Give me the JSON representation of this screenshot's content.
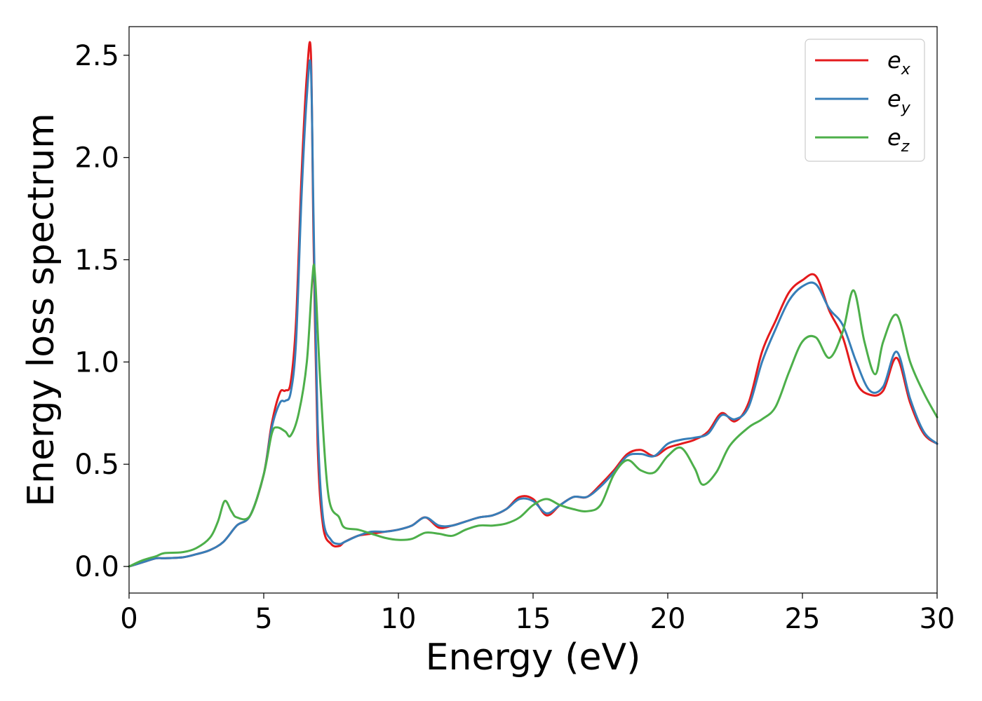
{
  "chart_data": {
    "type": "line",
    "title": "",
    "xlabel": "Energy (eV)",
    "ylabel": "Energy loss spectrum",
    "xlim": [
      0,
      30
    ],
    "ylim": [
      -0.13,
      2.64
    ],
    "xticks": [
      0,
      5,
      10,
      15,
      20,
      25,
      30
    ],
    "yticks": [
      0.0,
      0.5,
      1.0,
      1.5,
      2.0,
      2.5
    ],
    "xtick_labels": [
      "0",
      "5",
      "10",
      "15",
      "20",
      "25",
      "30"
    ],
    "ytick_labels": [
      "0.0",
      "0.5",
      "1.0",
      "1.5",
      "2.0",
      "2.5"
    ],
    "grid": false,
    "legend_position": "top-right",
    "series": [
      {
        "name": "e_x",
        "legend_base": "e",
        "legend_sub": "x",
        "color": "#e41a1c",
        "x": [
          0,
          0.5,
          1.0,
          1.3,
          2.0,
          2.5,
          3.0,
          3.5,
          4.0,
          4.5,
          5.0,
          5.3,
          5.6,
          5.8,
          6.0,
          6.2,
          6.4,
          6.6,
          6.75,
          6.85,
          7.0,
          7.2,
          7.5,
          7.8,
          8.0,
          8.5,
          9.0,
          9.5,
          10.0,
          10.5,
          11.0,
          11.5,
          12.0,
          12.5,
          13.0,
          13.5,
          14.0,
          14.5,
          15.0,
          15.5,
          16.0,
          16.5,
          17.0,
          17.5,
          18.0,
          18.5,
          19.0,
          19.5,
          20.0,
          20.5,
          21.0,
          21.5,
          22.0,
          22.5,
          23.0,
          23.5,
          24.0,
          24.5,
          25.0,
          25.5,
          26.0,
          26.5,
          27.0,
          27.5,
          28.0,
          28.5,
          29.0,
          29.5,
          30.0
        ],
        "values": [
          0.0,
          0.02,
          0.04,
          0.04,
          0.045,
          0.06,
          0.08,
          0.12,
          0.2,
          0.25,
          0.45,
          0.7,
          0.85,
          0.86,
          0.9,
          1.2,
          1.9,
          2.4,
          2.51,
          1.6,
          0.6,
          0.2,
          0.11,
          0.1,
          0.12,
          0.15,
          0.16,
          0.17,
          0.18,
          0.2,
          0.24,
          0.19,
          0.2,
          0.22,
          0.24,
          0.25,
          0.28,
          0.34,
          0.33,
          0.25,
          0.3,
          0.34,
          0.34,
          0.4,
          0.47,
          0.55,
          0.57,
          0.54,
          0.58,
          0.6,
          0.62,
          0.66,
          0.75,
          0.71,
          0.8,
          1.05,
          1.2,
          1.34,
          1.4,
          1.42,
          1.25,
          1.12,
          0.9,
          0.84,
          0.86,
          1.02,
          0.8,
          0.65,
          0.6
        ]
      },
      {
        "name": "e_y",
        "legend_base": "e",
        "legend_sub": "y",
        "color": "#377eb8",
        "x": [
          0,
          0.5,
          1.0,
          1.3,
          2.0,
          2.5,
          3.0,
          3.5,
          4.0,
          4.5,
          5.0,
          5.3,
          5.6,
          5.8,
          6.0,
          6.2,
          6.4,
          6.6,
          6.75,
          6.85,
          7.0,
          7.2,
          7.5,
          7.8,
          8.0,
          8.5,
          9.0,
          9.5,
          10.0,
          10.5,
          11.0,
          11.5,
          12.0,
          12.5,
          13.0,
          13.5,
          14.0,
          14.5,
          15.0,
          15.5,
          16.0,
          16.5,
          17.0,
          17.5,
          18.0,
          18.5,
          19.0,
          19.5,
          20.0,
          20.5,
          21.0,
          21.5,
          22.0,
          22.5,
          23.0,
          23.5,
          24.0,
          24.5,
          25.0,
          25.5,
          26.0,
          26.5,
          27.0,
          27.5,
          28.0,
          28.5,
          29.0,
          29.5,
          30.0
        ],
        "values": [
          0.0,
          0.02,
          0.04,
          0.04,
          0.045,
          0.06,
          0.08,
          0.12,
          0.2,
          0.25,
          0.45,
          0.68,
          0.8,
          0.81,
          0.85,
          1.1,
          1.8,
          2.3,
          2.44,
          1.7,
          0.7,
          0.24,
          0.13,
          0.11,
          0.12,
          0.15,
          0.17,
          0.17,
          0.18,
          0.2,
          0.24,
          0.2,
          0.2,
          0.22,
          0.24,
          0.25,
          0.28,
          0.33,
          0.32,
          0.26,
          0.3,
          0.34,
          0.34,
          0.39,
          0.46,
          0.54,
          0.55,
          0.54,
          0.6,
          0.62,
          0.63,
          0.65,
          0.74,
          0.72,
          0.78,
          1.0,
          1.16,
          1.3,
          1.37,
          1.38,
          1.26,
          1.18,
          1.0,
          0.86,
          0.88,
          1.05,
          0.82,
          0.66,
          0.6
        ]
      },
      {
        "name": "e_z",
        "legend_base": "e",
        "legend_sub": "z",
        "color": "#4daf4a",
        "x": [
          0,
          0.5,
          1.0,
          1.3,
          2.0,
          2.5,
          3.0,
          3.3,
          3.55,
          3.8,
          4.0,
          4.5,
          5.0,
          5.3,
          5.5,
          5.8,
          6.0,
          6.3,
          6.6,
          6.8,
          6.9,
          7.1,
          7.4,
          7.8,
          8.0,
          8.5,
          9.0,
          9.5,
          10.0,
          10.5,
          11.0,
          11.5,
          12.0,
          12.5,
          13.0,
          13.5,
          14.0,
          14.5,
          15.0,
          15.5,
          16.0,
          16.5,
          17.0,
          17.5,
          18.0,
          18.5,
          19.0,
          19.5,
          20.0,
          20.5,
          21.0,
          21.3,
          21.8,
          22.3,
          23.0,
          23.5,
          24.0,
          24.5,
          25.0,
          25.5,
          26.0,
          26.5,
          26.9,
          27.3,
          27.7,
          28.0,
          28.5,
          29.0,
          29.5,
          30.0
        ],
        "values": [
          0.0,
          0.03,
          0.05,
          0.065,
          0.07,
          0.09,
          0.14,
          0.22,
          0.32,
          0.27,
          0.24,
          0.25,
          0.45,
          0.65,
          0.68,
          0.66,
          0.64,
          0.75,
          1.0,
          1.4,
          1.43,
          0.9,
          0.35,
          0.24,
          0.19,
          0.18,
          0.16,
          0.14,
          0.13,
          0.135,
          0.165,
          0.16,
          0.15,
          0.18,
          0.2,
          0.2,
          0.21,
          0.24,
          0.3,
          0.33,
          0.3,
          0.28,
          0.27,
          0.3,
          0.45,
          0.52,
          0.47,
          0.46,
          0.54,
          0.58,
          0.48,
          0.4,
          0.46,
          0.59,
          0.68,
          0.72,
          0.78,
          0.95,
          1.1,
          1.12,
          1.02,
          1.15,
          1.35,
          1.1,
          0.94,
          1.1,
          1.23,
          1.0,
          0.85,
          0.73
        ]
      }
    ]
  }
}
